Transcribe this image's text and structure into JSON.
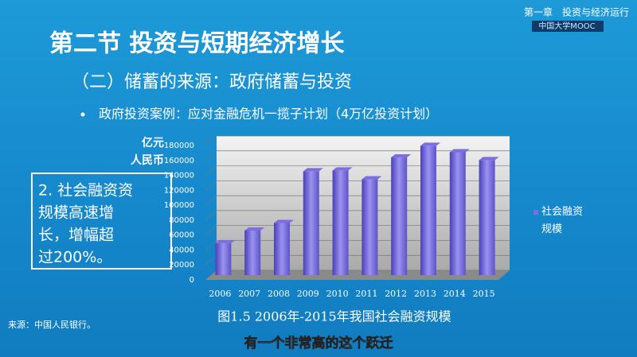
{
  "header": {
    "chapter": "第一章　投资与经济运行",
    "logo": "中国大学MOOC"
  },
  "slide": {
    "title": "第二节 投资与短期经济增长",
    "subtitle": "（二）储蓄的来源：政府储蓄与投资",
    "bullet": "政府投资案例：应对金融危机一揽子计划（4万亿投资计划）",
    "note_lines": [
      "2. 社会融资资",
      "规模高速增",
      "长，增幅超",
      "过200%。"
    ],
    "source": "来源：中国人民银行。",
    "caption_subtitle": "有一个非常高的这个跃迁"
  },
  "chart_data": {
    "type": "bar",
    "title": "图1.5 2006年-2015年我国社会融资规模",
    "y_label_lines": [
      "亿元",
      "人民币"
    ],
    "categories": [
      "2006",
      "2007",
      "2008",
      "2009",
      "2010",
      "2011",
      "2012",
      "2013",
      "2014",
      "2015"
    ],
    "series": [
      {
        "name": "社会融资规模",
        "color": "#7b6fe0",
        "values": [
          42700,
          59700,
          69800,
          139100,
          140200,
          128300,
          157600,
          173200,
          164600,
          154100
        ]
      }
    ],
    "ylim": [
      0,
      180000
    ],
    "yticks": [
      0,
      20000,
      40000,
      60000,
      80000,
      100000,
      120000,
      140000,
      160000,
      180000
    ],
    "grid": true,
    "legend": "right"
  }
}
